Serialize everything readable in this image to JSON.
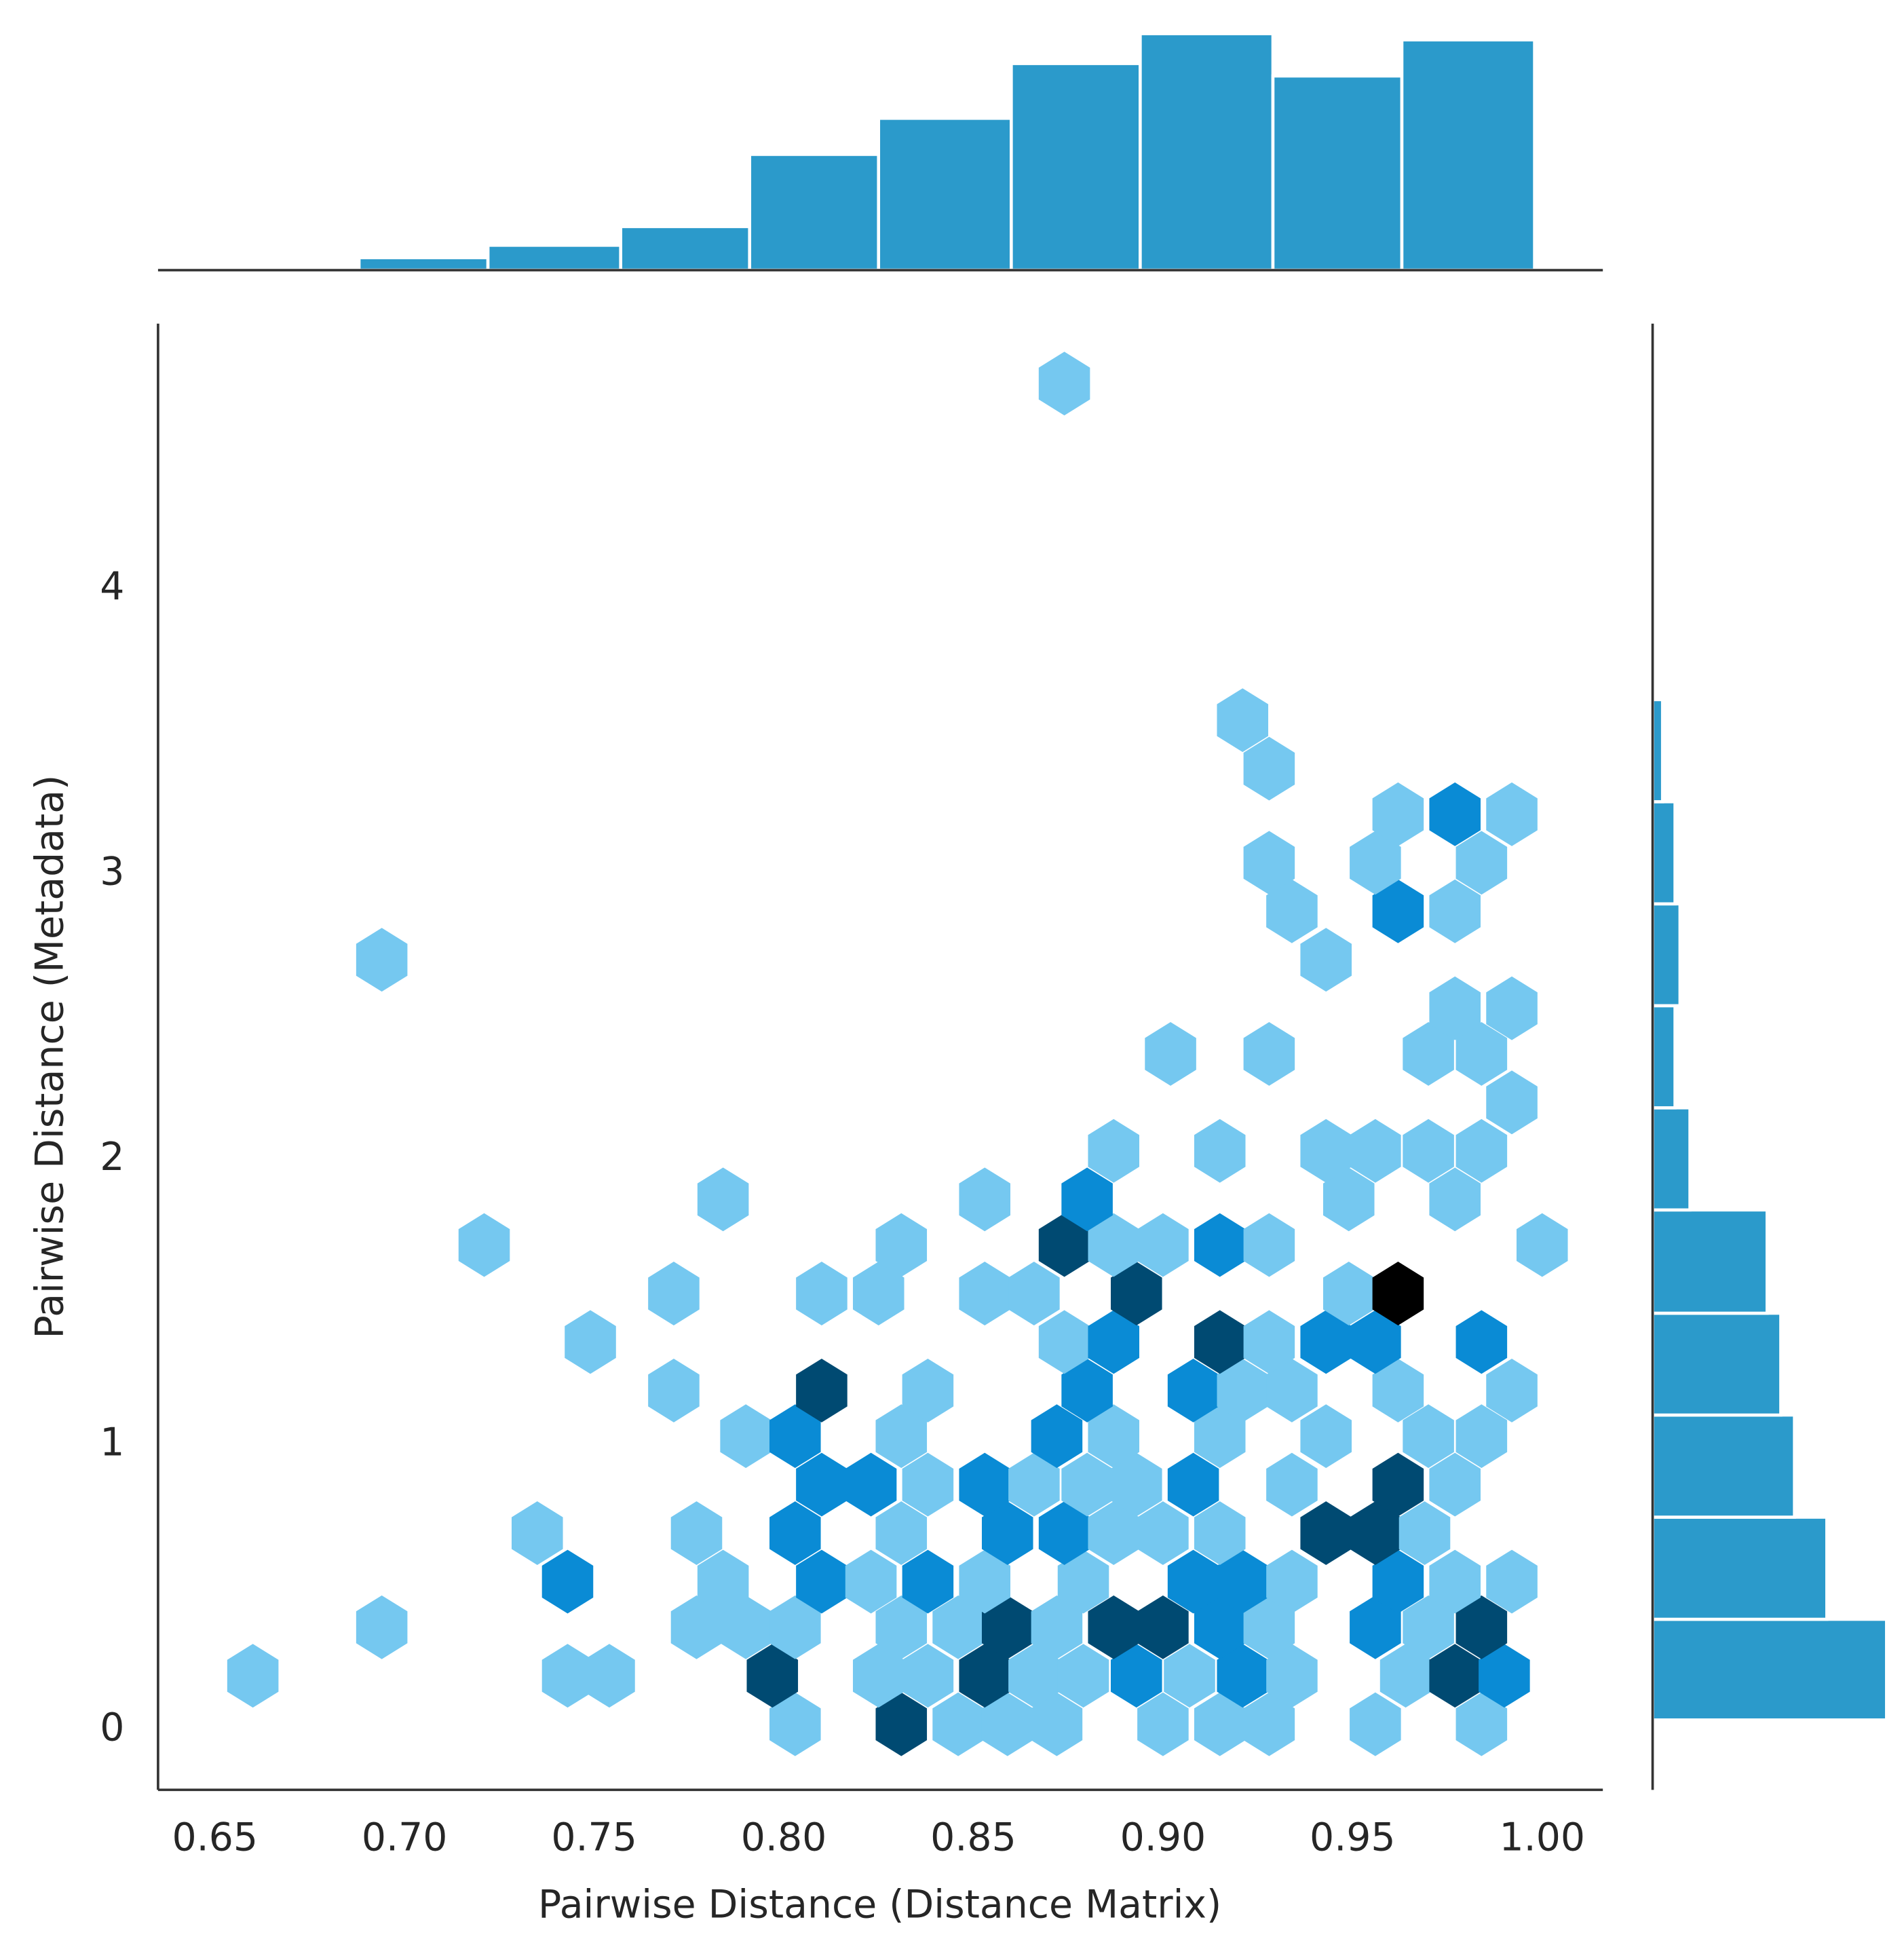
{
  "chart_data": {
    "type": "hexbin",
    "xlabel": "Pairwise Distance (Distance Matrix)",
    "ylabel": "Pairwise Distance (Metadata)",
    "xlim": [
      0.635,
      1.016
    ],
    "ylim": [
      -0.21,
      4.93
    ],
    "xticks": [
      0.65,
      {
        "value": 0.7,
        "label": "0.70"
      },
      0.75,
      {
        "value": 0.8,
        "label": "0.80"
      },
      0.85,
      {
        "value": 0.9,
        "label": "0.90"
      },
      0.95,
      {
        "value": 1.0,
        "label": "1.00"
      }
    ],
    "yticks": [
      0,
      1,
      2,
      3,
      4
    ],
    "cmap": [
      "#75c8f0",
      "#0a8bd5",
      "#004a72",
      "#000000"
    ],
    "x": [
      0.803,
      0.831,
      0.846,
      0.859,
      0.872,
      0.9,
      0.915,
      0.928,
      0.956,
      0.984,
      0.66,
      0.743,
      0.754,
      0.797,
      0.825,
      0.838,
      0.853,
      0.866,
      0.879,
      0.893,
      0.907,
      0.921,
      0.934,
      0.964,
      0.977,
      0.99,
      0.694,
      0.777,
      0.79,
      0.803,
      0.831,
      0.846,
      0.859,
      0.872,
      0.887,
      0.9,
      0.915,
      0.928,
      0.956,
      0.97,
      0.984,
      0.743,
      0.784,
      0.81,
      0.823,
      0.838,
      0.853,
      0.879,
      0.908,
      0.921,
      0.934,
      0.962,
      0.977,
      0.992,
      0.735,
      0.777,
      0.803,
      0.831,
      0.859,
      0.874,
      0.887,
      0.9,
      0.915,
      0.943,
      0.956,
      0.969,
      0.81,
      0.823,
      0.838,
      0.853,
      0.866,
      0.88,
      0.893,
      0.908,
      0.934,
      0.962,
      0.977,
      0.79,
      0.803,
      0.831,
      0.872,
      0.887,
      0.915,
      0.943,
      0.97,
      0.984,
      0.771,
      0.81,
      0.838,
      0.88,
      0.908,
      0.921,
      0.934,
      0.962,
      0.992,
      0.749,
      0.874,
      0.887,
      0.915,
      0.928,
      0.943,
      0.956,
      0.984,
      0.771,
      0.81,
      0.825,
      0.853,
      0.866,
      0.893,
      0.949,
      0.962,
      0.721,
      0.831,
      0.874,
      0.887,
      0.9,
      0.915,
      0.928,
      1.0,
      0.784,
      0.853,
      0.88,
      0.949,
      0.977,
      0.887,
      0.915,
      0.943,
      0.956,
      0.97,
      0.984,
      0.992,
      0.902,
      0.928,
      0.97,
      0.984,
      0.977,
      0.992,
      0.694,
      0.943,
      0.934,
      0.962,
      0.977,
      0.928,
      0.956,
      0.984,
      0.962,
      0.977,
      0.992,
      0.928,
      0.921,
      0.874
    ],
    "y": [
      0.02,
      0.02,
      0.02,
      0.02,
      0.02,
      0.02,
      0.02,
      0.02,
      0.02,
      0.02,
      0.19,
      0.19,
      0.19,
      0.19,
      0.19,
      0.19,
      0.19,
      0.19,
      0.19,
      0.19,
      0.19,
      0.19,
      0.19,
      0.19,
      0.19,
      0.19,
      0.36,
      0.36,
      0.36,
      0.36,
      0.36,
      0.36,
      0.36,
      0.36,
      0.36,
      0.36,
      0.36,
      0.36,
      0.36,
      0.36,
      0.36,
      0.52,
      0.52,
      0.52,
      0.52,
      0.52,
      0.52,
      0.52,
      0.52,
      0.52,
      0.52,
      0.52,
      0.52,
      0.52,
      0.69,
      0.69,
      0.69,
      0.69,
      0.69,
      0.69,
      0.69,
      0.69,
      0.69,
      0.69,
      0.69,
      0.69,
      0.86,
      0.86,
      0.86,
      0.86,
      0.86,
      0.86,
      0.86,
      0.86,
      0.86,
      0.86,
      0.86,
      1.03,
      1.03,
      1.03,
      1.03,
      1.03,
      1.03,
      1.03,
      1.03,
      1.03,
      1.19,
      1.19,
      1.19,
      1.19,
      1.19,
      1.19,
      1.19,
      1.19,
      1.19,
      1.36,
      1.36,
      1.36,
      1.36,
      1.36,
      1.36,
      1.36,
      1.36,
      1.53,
      1.53,
      1.53,
      1.53,
      1.53,
      1.53,
      1.53,
      1.53,
      1.7,
      1.7,
      1.7,
      1.7,
      1.7,
      1.7,
      1.7,
      1.7,
      1.86,
      1.86,
      1.86,
      1.86,
      1.86,
      2.03,
      2.03,
      2.03,
      2.03,
      2.03,
      2.03,
      2.2,
      2.37,
      2.37,
      2.37,
      2.37,
      2.53,
      2.53,
      2.7,
      2.7,
      2.87,
      2.87,
      2.87,
      3.04,
      3.04,
      3.04,
      3.21,
      3.21,
      3.21,
      3.37,
      3.54,
      4.72
    ],
    "values": [
      1,
      3,
      1,
      1,
      1,
      1,
      1,
      1,
      1,
      1,
      1,
      1,
      1,
      3,
      1,
      1,
      3,
      1,
      1,
      2,
      1,
      2,
      1,
      1,
      3,
      2,
      1,
      1,
      1,
      1,
      1,
      1,
      3,
      1,
      3,
      3,
      2,
      1,
      2,
      1,
      3,
      2,
      1,
      2,
      1,
      2,
      1,
      1,
      2,
      2,
      1,
      2,
      1,
      1,
      1,
      1,
      2,
      1,
      2,
      2,
      1,
      1,
      1,
      3,
      3,
      1,
      2,
      2,
      1,
      2,
      1,
      1,
      1,
      2,
      1,
      3,
      1,
      1,
      2,
      1,
      2,
      1,
      1,
      1,
      1,
      1,
      1,
      3,
      1,
      2,
      2,
      1,
      1,
      1,
      1,
      1,
      1,
      2,
      3,
      1,
      2,
      2,
      2,
      1,
      1,
      1,
      1,
      1,
      3,
      1,
      4,
      1,
      1,
      3,
      1,
      1,
      2,
      1,
      1,
      1,
      1,
      2,
      1,
      1,
      1,
      1,
      1,
      1,
      1,
      1,
      1,
      1,
      1,
      1,
      1,
      1,
      1,
      1,
      1,
      1,
      2,
      1,
      1,
      1,
      1,
      1,
      2,
      1,
      1,
      1,
      1
    ],
    "hist_color": "#2b9acb",
    "x_hist": {
      "bins": [
        0.653,
        0.688,
        0.722,
        0.757,
        0.791,
        0.825,
        0.86,
        0.894,
        0.929,
        0.963,
        0.998
      ],
      "counts": [
        2,
        10,
        20,
        35,
        93,
        122,
        166,
        190,
        156,
        185
      ]
    },
    "y_hist": {
      "bins": [
        0.035,
        0.388,
        0.746,
        1.104,
        1.461,
        1.823,
        2.181,
        2.539,
        2.896,
        3.254,
        3.612
      ],
      "counts": [
        188,
        140,
        114,
        103,
        92,
        30,
        18,
        22,
        18,
        8
      ]
    }
  }
}
